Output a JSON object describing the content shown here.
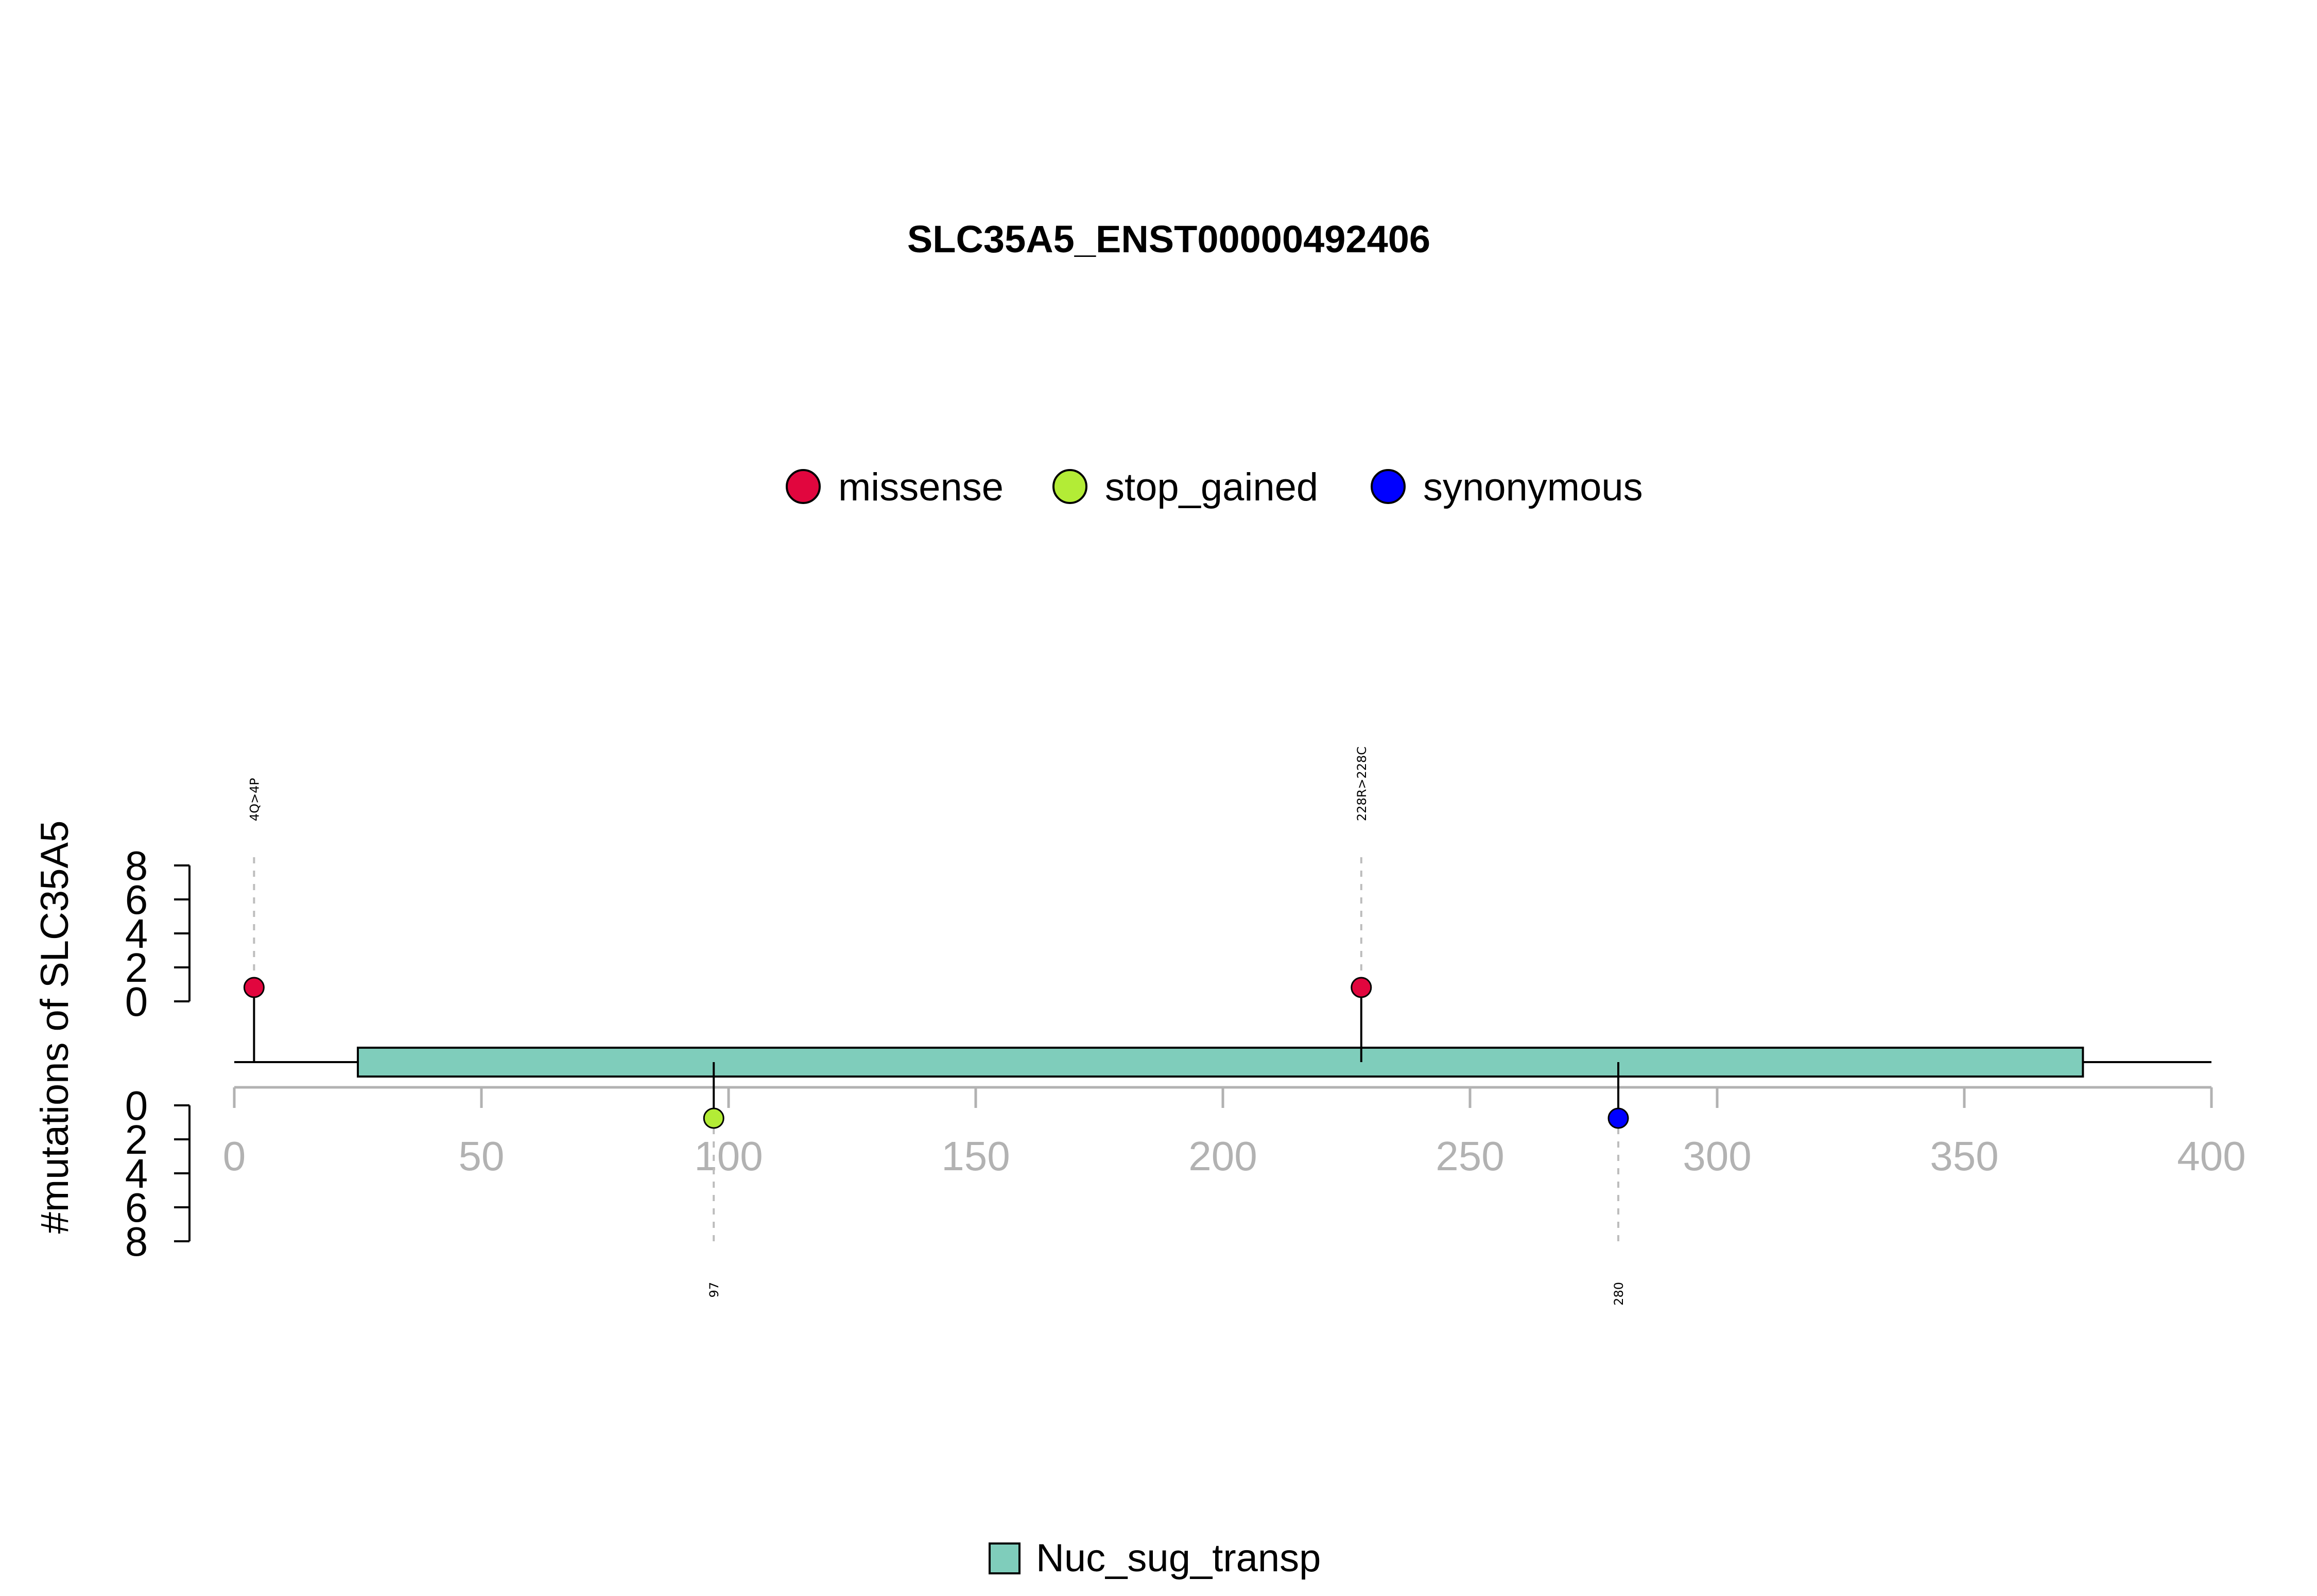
{
  "chart_data": {
    "type": "lollipop",
    "title": "SLC35A5_ENST00000492406",
    "ylabel": "#mutations of SLC35A5",
    "xlim": [
      0,
      400
    ],
    "x_ticks": [
      "0",
      "50",
      "100",
      "150",
      "200",
      "250",
      "300",
      "350",
      "400"
    ],
    "y_ticks": [
      "0",
      "2",
      "4",
      "6",
      "8"
    ],
    "protein_length": 400,
    "legend": [
      {
        "name": "missense",
        "color": "#e1063e"
      },
      {
        "name": "stop_gained",
        "color": "#b3ec36"
      },
      {
        "name": "synonymous",
        "color": "#0000ff"
      }
    ],
    "domains": [
      {
        "name": "Nuc_sug_transp",
        "start": 25,
        "end": 374,
        "color": "#7fcdbb"
      }
    ],
    "mutations": [
      {
        "position": 4,
        "label": "4Q>4P",
        "type": "missense",
        "count": 1,
        "side": "top"
      },
      {
        "position": 97,
        "label": "97",
        "type": "stop_gained",
        "count": 1,
        "side": "bottom"
      },
      {
        "position": 228,
        "label": "228R>228C",
        "type": "missense",
        "count": 1,
        "side": "top"
      },
      {
        "position": 280,
        "label": "280",
        "type": "synonymous",
        "count": 1,
        "side": "bottom"
      }
    ]
  }
}
